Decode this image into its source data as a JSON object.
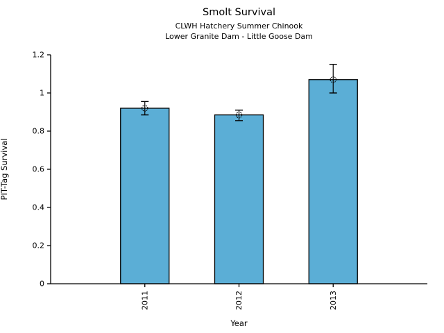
{
  "chart_data": {
    "type": "bar",
    "title": "Smolt Survival",
    "subtitle1": "CLWH Hatchery Summer Chinook",
    "subtitle2": "Lower Granite Dam - Little Goose Dam",
    "xlabel": "Year",
    "ylabel": "PIT-Tag Survival",
    "categories": [
      "2011",
      "2012",
      "2013"
    ],
    "values": [
      0.92,
      0.885,
      1.07
    ],
    "error_low": [
      0.885,
      0.855,
      1.0
    ],
    "error_high": [
      0.955,
      0.91,
      1.15
    ],
    "ylim": [
      0,
      1.2
    ],
    "yticks": [
      0,
      0.2,
      0.4,
      0.6,
      0.8,
      1,
      1.2
    ],
    "ytick_labels": [
      "0",
      "0.2",
      "0.4",
      "0.6",
      "0.8",
      "1",
      "1.2"
    ],
    "legend": "none",
    "grid": "off",
    "bar_color": "#5BAED6",
    "bar_edge_color": "#000000",
    "axis_color": "#000000",
    "background_color": "#ffffff"
  }
}
